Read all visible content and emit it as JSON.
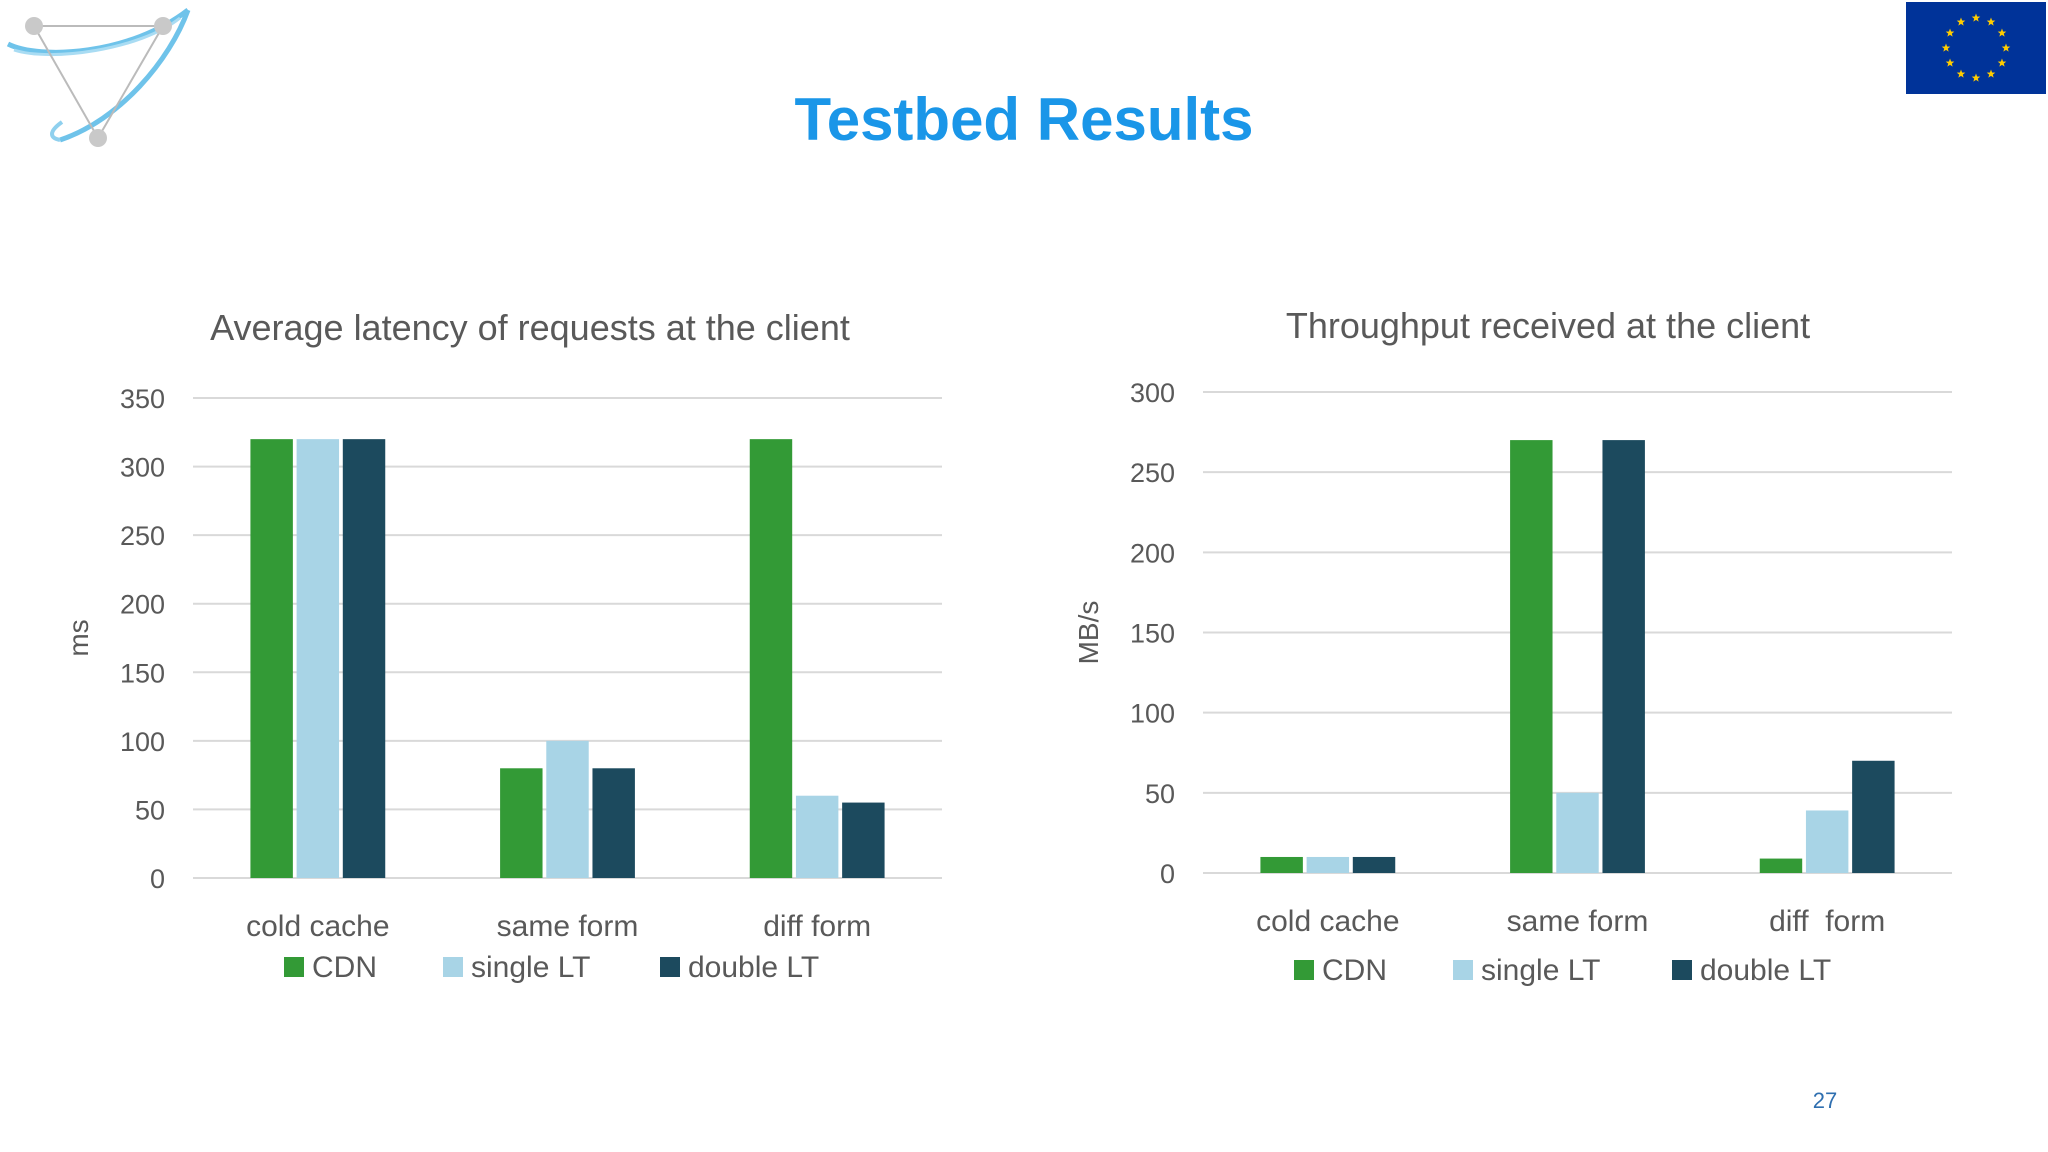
{
  "slide": {
    "title": "Testbed Results",
    "page_number": "27"
  },
  "logos": {
    "left_logo": "network-logo-icon",
    "right_logo": "eu-flag-icon"
  },
  "colors": {
    "title": "#1a96e8",
    "series": [
      "#339a36",
      "#a8d4e6",
      "#1c4a5e"
    ],
    "grid": "#d9d9d9",
    "text": "#595959",
    "eu_blue": "#003399",
    "eu_star": "#ffcc00"
  },
  "chart_data": [
    {
      "type": "bar",
      "title": "Average latency of requests at the client",
      "ylabel": "ms",
      "xlabel": "",
      "categories": [
        "cold cache",
        "same form",
        "diff form"
      ],
      "series": [
        {
          "name": "CDN",
          "values": [
            320,
            80,
            320
          ]
        },
        {
          "name": "single LT",
          "values": [
            320,
            100,
            60
          ]
        },
        {
          "name": "double LT",
          "values": [
            320,
            80,
            55
          ]
        }
      ],
      "ylim": [
        0,
        350
      ],
      "yticks": [
        0,
        50,
        100,
        150,
        200,
        250,
        300,
        350
      ],
      "grid": true,
      "legend": "bottom"
    },
    {
      "type": "bar",
      "title": "Throughput received at the client",
      "ylabel": "MB/s",
      "xlabel": "",
      "categories": [
        "cold cache",
        "same form",
        "diff  form"
      ],
      "series": [
        {
          "name": "CDN",
          "values": [
            10,
            270,
            9
          ]
        },
        {
          "name": "single LT",
          "values": [
            10,
            50,
            39
          ]
        },
        {
          "name": "double LT",
          "values": [
            10,
            270,
            70
          ]
        }
      ],
      "ylim": [
        0,
        300
      ],
      "yticks": [
        0,
        50,
        100,
        150,
        200,
        250,
        300
      ],
      "grid": true,
      "legend": "bottom"
    }
  ]
}
